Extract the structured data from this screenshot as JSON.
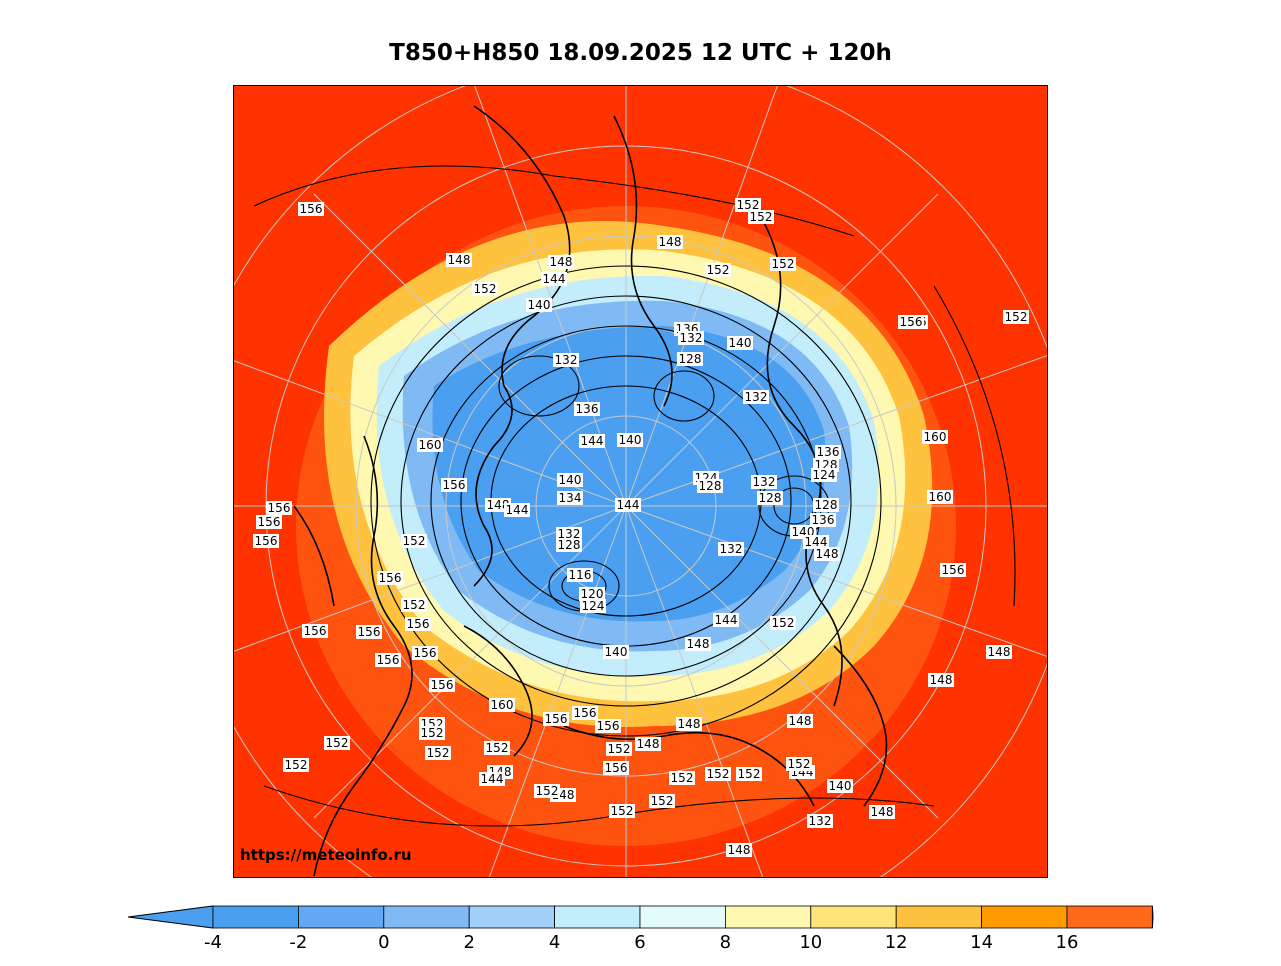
{
  "title": "T850+H850 18.09.2025 12 UTC + 120h",
  "watermark": "https://meteoinfo.ru",
  "colorbar": {
    "ticks": [
      "-4",
      "-2",
      "0",
      "2",
      "4",
      "6",
      "8",
      "10",
      "12",
      "14",
      "16"
    ],
    "colors": [
      "#4a9ff0",
      "#62a8f2",
      "#7fbaf5",
      "#a1cff8",
      "#c3edfa",
      "#e4fbfb",
      "#fff8b0",
      "#ffe47a",
      "#ffc23e",
      "#ff9a00",
      "#ff6a1a"
    ],
    "under_color": "#4a9ff0",
    "over_color": "#ff3300"
  },
  "colors": {
    "background": "#ff3300",
    "land_lines": "#000000",
    "grid": "#c8c8c8"
  },
  "height_labels": [
    "156",
    "148",
    "152",
    "148",
    "144",
    "140",
    "148",
    "152",
    "152",
    "152",
    "152",
    "156",
    "152",
    "136",
    "132",
    "128",
    "140",
    "132",
    "132",
    "136",
    "144",
    "140",
    "160",
    "156",
    "140",
    "134",
    "144",
    "148",
    "144",
    "124",
    "128",
    "132",
    "128",
    "136",
    "128",
    "124",
    "128",
    "136",
    "140",
    "144",
    "148",
    "160",
    "160",
    "156",
    "132",
    "128",
    "116",
    "120",
    "124",
    "132",
    "152",
    "144",
    "148",
    "140",
    "156",
    "156",
    "156",
    "156",
    "156",
    "152",
    "156",
    "156",
    "156",
    "156",
    "156",
    "156",
    "160",
    "156",
    "156",
    "156",
    "152",
    "152",
    "152",
    "152",
    "152",
    "152",
    "148",
    "148",
    "144",
    "152",
    "148",
    "148",
    "152",
    "156",
    "152",
    "152",
    "152",
    "152",
    "148",
    "152",
    "152",
    "144",
    "140",
    "132",
    "148",
    "152",
    "148",
    "148",
    "148"
  ]
}
